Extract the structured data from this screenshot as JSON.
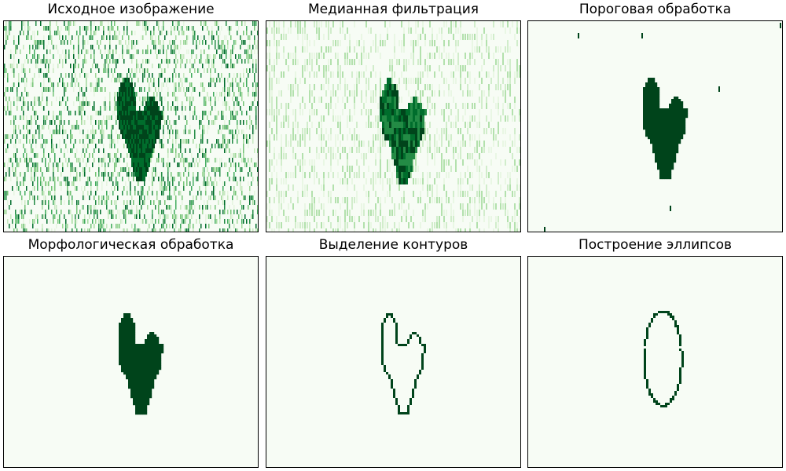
{
  "figure": {
    "panels": [
      {
        "title": "Исходное изображение"
      },
      {
        "title": "Медианная фильтрация"
      },
      {
        "title": "Пороговая обработка"
      },
      {
        "title": "Морфологическая обработка"
      },
      {
        "title": "Выделение контуров"
      },
      {
        "title": "Построение эллипсов"
      }
    ],
    "colormap": {
      "light": "#f7fcf5",
      "dark": "#00441b",
      "mid": "#41ab5d",
      "pale": "#c7e9c0"
    }
  }
}
